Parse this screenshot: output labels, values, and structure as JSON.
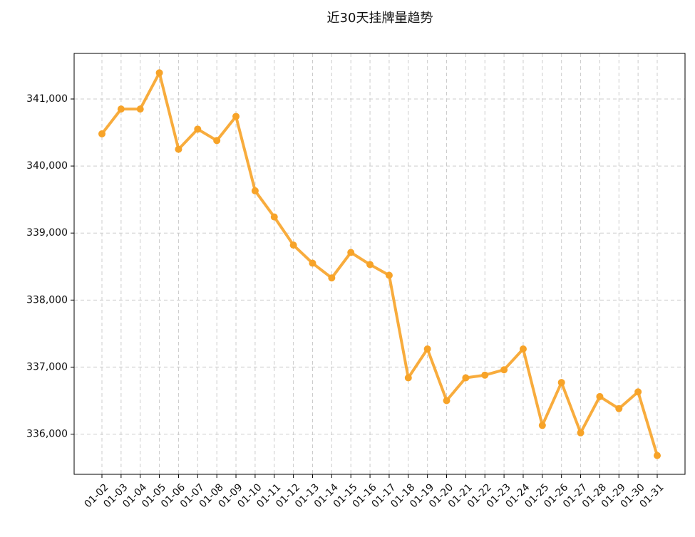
{
  "chart_data": {
    "type": "line",
    "title": "近30天挂牌量趋势",
    "categories": [
      "01-02",
      "01-03",
      "01-04",
      "01-05",
      "01-06",
      "01-07",
      "01-08",
      "01-09",
      "01-10",
      "01-11",
      "01-12",
      "01-13",
      "01-14",
      "01-15",
      "01-16",
      "01-17",
      "01-18",
      "01-19",
      "01-20",
      "01-21",
      "01-22",
      "01-23",
      "01-24",
      "01-25",
      "01-26",
      "01-27",
      "01-28",
      "01-29",
      "01-30",
      "01-31"
    ],
    "series": [
      {
        "name": "挂牌量",
        "color": "#f7a328",
        "values": [
          340480,
          340850,
          340850,
          341390,
          340250,
          340550,
          340380,
          340740,
          339630,
          339240,
          338820,
          338550,
          338330,
          338710,
          338530,
          338370,
          336840,
          337270,
          336500,
          336840,
          336880,
          336960,
          337270,
          336130,
          336770,
          336020,
          336560,
          336380,
          336630,
          335680
        ]
      }
    ],
    "ylim": [
      335400,
      341680
    ],
    "yticks": [
      {
        "value": 336000,
        "label": "336,000"
      },
      {
        "value": 337000,
        "label": "337,000"
      },
      {
        "value": 338000,
        "label": "338,000"
      },
      {
        "value": 339000,
        "label": "339,000"
      },
      {
        "value": 340000,
        "label": "340,000"
      },
      {
        "value": 341000,
        "label": "341,000"
      }
    ],
    "grid": true
  }
}
